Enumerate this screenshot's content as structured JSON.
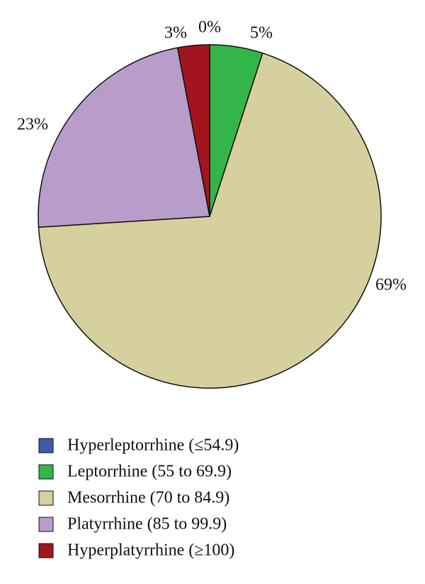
{
  "chart_data": {
    "type": "pie",
    "categories": [
      "Hyperleptorrhine (≤54.9)",
      "Leptorrhine (55 to 69.9)",
      "Mesorrhine (70 to 84.9)",
      "Platyrrhine (85 to 99.9)",
      "Hyperplatyrrhine (≥100)"
    ],
    "values": [
      0,
      5,
      69,
      23,
      3
    ],
    "value_labels": [
      "0%",
      "5%",
      "69%",
      "23%",
      "3%"
    ],
    "colors": [
      "#3a5cab",
      "#33b54a",
      "#d6d09e",
      "#b89dcb",
      "#a3151e"
    ],
    "legend": "bottom"
  }
}
